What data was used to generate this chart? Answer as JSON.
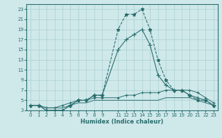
{
  "xlabel": "Humidex (Indice chaleur)",
  "bg_color": "#cfe8ea",
  "line_color": "#2a6e6e",
  "grid_color": "#aacfcf",
  "xlim": [
    -0.5,
    23.5
  ],
  "ylim": [
    3,
    24
  ],
  "xticks": [
    0,
    1,
    2,
    3,
    4,
    5,
    6,
    7,
    8,
    9,
    11,
    12,
    13,
    14,
    15,
    16,
    17,
    18,
    19,
    20,
    21,
    22,
    23
  ],
  "xtick_labels": [
    "0",
    "1",
    "2",
    "3",
    "4",
    "5",
    "6",
    "7",
    "8",
    "9",
    "11",
    "12",
    "13",
    "14",
    "15",
    "16",
    "17",
    "18",
    "19",
    "20",
    "21",
    "22",
    "23"
  ],
  "yticks": [
    3,
    5,
    7,
    9,
    11,
    13,
    15,
    17,
    19,
    21,
    23
  ],
  "lines": [
    {
      "x": [
        0,
        1,
        2,
        3,
        4,
        5,
        6,
        7,
        8,
        9,
        11,
        12,
        13,
        14,
        15,
        16,
        17,
        18,
        19,
        20,
        21,
        22,
        23
      ],
      "y": [
        4,
        4,
        3,
        3,
        3,
        4,
        5,
        5,
        6,
        6,
        19,
        22,
        22,
        23,
        19,
        13,
        9,
        7,
        7,
        6,
        5,
        5,
        4
      ],
      "marker": "*",
      "ms": 3.5,
      "ls": "--",
      "lw": 0.8
    },
    {
      "x": [
        0,
        1,
        2,
        3,
        4,
        5,
        6,
        7,
        8,
        9,
        11,
        12,
        13,
        14,
        15,
        16,
        17,
        18,
        19,
        20,
        21,
        22,
        23
      ],
      "y": [
        4,
        4,
        3,
        3,
        3,
        4,
        5,
        5,
        6,
        6,
        15,
        17,
        18,
        19,
        16,
        10,
        8,
        7,
        7,
        6,
        5.5,
        5,
        4
      ],
      "marker": "+",
      "ms": 4,
      "ls": "-",
      "lw": 0.8
    },
    {
      "x": [
        0,
        1,
        2,
        3,
        4,
        5,
        6,
        7,
        8,
        9,
        11,
        12,
        13,
        14,
        15,
        16,
        17,
        18,
        19,
        20,
        21,
        22,
        23
      ],
      "y": [
        4,
        4,
        3.5,
        3.5,
        4,
        4.5,
        5,
        5,
        5.5,
        5.5,
        5.5,
        6,
        6,
        6.5,
        6.5,
        6.5,
        7,
        7,
        7,
        7,
        6.5,
        5.5,
        4.5
      ],
      "marker": "+",
      "ms": 3,
      "ls": "-",
      "lw": 0.7
    },
    {
      "x": [
        0,
        1,
        2,
        3,
        4,
        5,
        6,
        7,
        8,
        9,
        11,
        12,
        13,
        14,
        15,
        16,
        17,
        18,
        19,
        20,
        21,
        22,
        23
      ],
      "y": [
        4,
        4,
        3.5,
        3.5,
        3.5,
        4,
        4.5,
        4.5,
        5,
        5,
        5,
        5,
        5,
        5,
        5,
        5,
        5.5,
        5.5,
        5.5,
        5.5,
        5,
        4.5,
        4
      ],
      "marker": null,
      "ms": 0,
      "ls": "-",
      "lw": 0.7
    }
  ]
}
